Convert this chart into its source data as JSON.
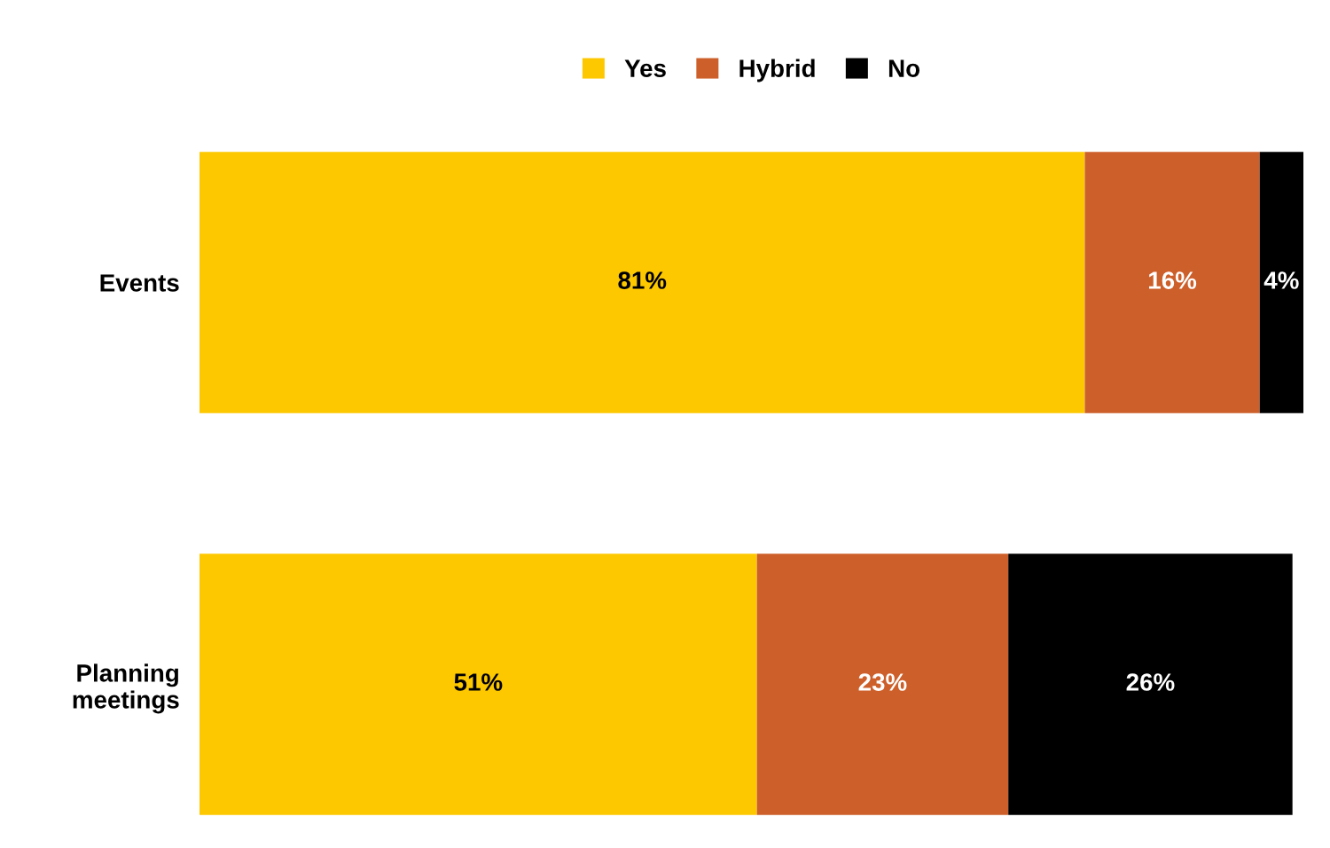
{
  "chart_data": {
    "type": "bar",
    "orientation": "horizontal",
    "stacked": true,
    "data_labels": true,
    "legend": "top",
    "grid": false,
    "categories": [
      "Events",
      "Planning\nmeetings"
    ],
    "series": [
      {
        "name": "Yes",
        "color": "#fdc800",
        "values": [
          81,
          51
        ],
        "value_labels": [
          "81%",
          "51%"
        ]
      },
      {
        "name": "Hybrid",
        "color": "#cd5f2a",
        "values": [
          16,
          23
        ],
        "value_labels": [
          "16%",
          "23%"
        ]
      },
      {
        "name": "No",
        "color": "#000000",
        "values": [
          4,
          26
        ],
        "value_labels": [
          "4%",
          "26%"
        ]
      }
    ]
  }
}
